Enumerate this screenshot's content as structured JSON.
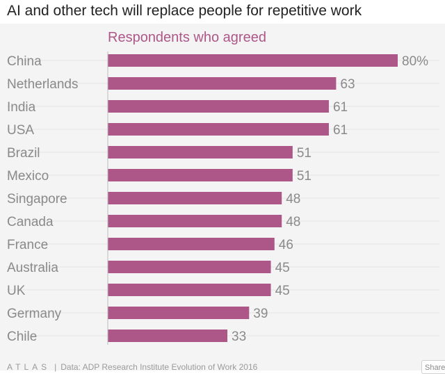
{
  "title": "AI and other tech will replace people for repetitive work",
  "footer": {
    "brand": "ATLAS",
    "source": "Data: ADP Research Institute Evolution of Work 2016",
    "share_label": "Share"
  },
  "colors": {
    "bar": "#ad5789",
    "subtitle": "#ad5789",
    "label": "#8a8a8a",
    "grid": "#e4e4e4",
    "axis": "#bdbdbd",
    "background": "#f4f4f4"
  },
  "chart_data": {
    "type": "bar",
    "orientation": "horizontal",
    "subtitle": "Respondents who agreed",
    "categories": [
      "China",
      "Netherlands",
      "India",
      "USA",
      "Brazil",
      "Mexico",
      "Singapore",
      "Canada",
      "France",
      "Australia",
      "UK",
      "Germany",
      "Chile"
    ],
    "values": [
      80,
      63,
      61,
      61,
      51,
      51,
      48,
      48,
      46,
      45,
      45,
      39,
      33
    ],
    "value_labels": [
      "80%",
      "63",
      "61",
      "61",
      "51",
      "51",
      "48",
      "48",
      "46",
      "45",
      "45",
      "39",
      "33"
    ],
    "xlim": [
      0,
      80
    ],
    "grid": true
  }
}
